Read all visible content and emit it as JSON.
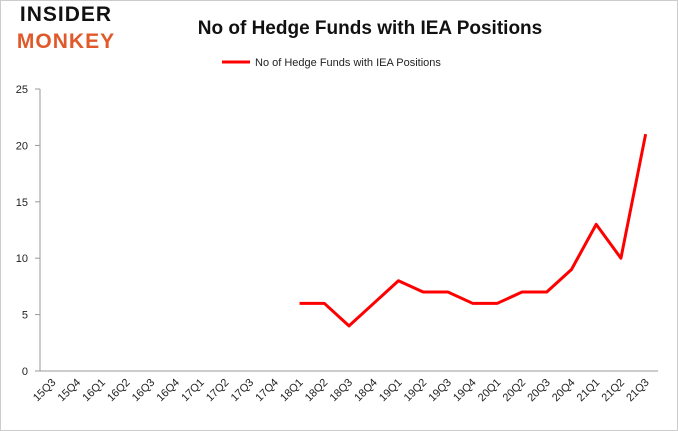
{
  "logo": {
    "line1": "INSIDER",
    "line2": "MONKEY"
  },
  "chart_data": {
    "type": "line",
    "title": "No of Hedge Funds with IEA Positions",
    "categories": [
      "15Q3",
      "15Q4",
      "16Q1",
      "16Q2",
      "16Q3",
      "16Q4",
      "17Q1",
      "17Q2",
      "17Q3",
      "17Q4",
      "18Q1",
      "18Q2",
      "18Q3",
      "18Q4",
      "19Q1",
      "19Q2",
      "19Q3",
      "19Q4",
      "20Q1",
      "20Q2",
      "20Q3",
      "20Q4",
      "21Q1",
      "21Q2",
      "21Q3"
    ],
    "series": [
      {
        "name": "No of Hedge Funds with IEA Positions",
        "color": "#ff0000",
        "values": [
          null,
          null,
          null,
          null,
          null,
          null,
          null,
          null,
          null,
          null,
          6,
          6,
          4,
          6,
          8,
          7,
          7,
          6,
          6,
          7,
          7,
          9,
          13,
          10,
          21
        ]
      }
    ],
    "ylim": [
      0,
      25
    ],
    "yticks": [
      0,
      5,
      10,
      15,
      20,
      25
    ],
    "grid": false,
    "legend": "top"
  }
}
